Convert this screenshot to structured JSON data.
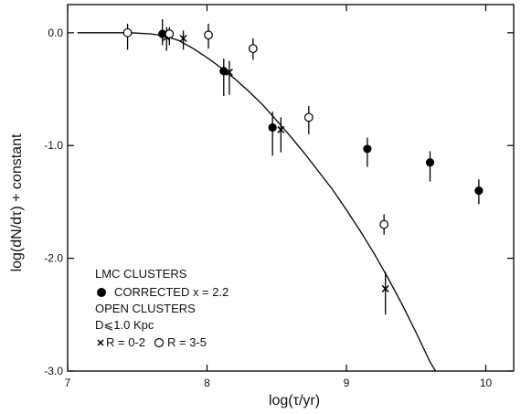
{
  "chart_data": {
    "type": "scatter",
    "xlabel": "log(τ/yr)",
    "ylabel": "log(dN/dτ) + constant",
    "xlim": [
      7,
      10.2
    ],
    "ylim": [
      -3.0,
      0.25
    ],
    "x_ticks": [
      7,
      8,
      9,
      10
    ],
    "x_tick_labels": [
      "7",
      "8",
      "9",
      "10"
    ],
    "y_ticks": [
      0,
      -1,
      -2,
      -3
    ],
    "y_tick_labels": [
      "0.0",
      "-1.0",
      "-2.0",
      "-3.0"
    ],
    "grid": false,
    "legend_position": "bottom-left",
    "legend": {
      "title1": "LMC CLUSTERS",
      "corrected_label": "CORRECTED x = 2.2",
      "title2": "OPEN CLUSTERS",
      "distance_label": "D⩽1.0 Kpc",
      "cross_label": "R = 0-2",
      "open_label": "R = 3-5"
    },
    "series": [
      {
        "marker": "filled-circle",
        "points": [
          {
            "x": 7.68,
            "y": -0.01,
            "yerr": [
              0.1,
              0.13
            ]
          },
          {
            "x": 8.12,
            "y": -0.34,
            "yerr": [
              0.22,
              0.11
            ]
          },
          {
            "x": 8.47,
            "y": -0.84,
            "yerr": [
              0.25,
              0.14
            ]
          },
          {
            "x": 9.15,
            "y": -1.03,
            "yerr": [
              0.16,
              0.1
            ]
          },
          {
            "x": 9.6,
            "y": -1.15,
            "yerr": [
              0.17,
              0.1
            ]
          },
          {
            "x": 9.95,
            "y": -1.4,
            "yerr": [
              0.12,
              0.1
            ]
          }
        ]
      },
      {
        "marker": "cross",
        "points": [
          {
            "x": 7.71,
            "y": -0.04,
            "yerr": [
              0.12,
              0.09
            ]
          },
          {
            "x": 7.83,
            "y": -0.05,
            "yerr": [
              0.1,
              0.07
            ]
          },
          {
            "x": 8.16,
            "y": -0.35,
            "yerr": [
              0.2,
              0.1
            ]
          },
          {
            "x": 8.53,
            "y": -0.86,
            "yerr": [
              0.2,
              0.11
            ]
          },
          {
            "x": 9.28,
            "y": -2.27,
            "yerr": [
              0.23,
              0.15
            ]
          }
        ]
      },
      {
        "marker": "open-circle",
        "points": [
          {
            "x": 7.43,
            "y": 0.0,
            "yerr": [
              0.15,
              0.08
            ]
          },
          {
            "x": 7.73,
            "y": -0.01,
            "yerr": [
              0.1,
              0.06
            ]
          },
          {
            "x": 8.01,
            "y": -0.02,
            "yerr": [
              0.12,
              0.1
            ]
          },
          {
            "x": 8.33,
            "y": -0.14,
            "yerr": [
              0.1,
              0.09
            ]
          },
          {
            "x": 8.73,
            "y": -0.75,
            "yerr": [
              0.15,
              0.1
            ]
          },
          {
            "x": 9.27,
            "y": -1.7,
            "yerr": [
              0.09,
              0.09
            ]
          }
        ]
      }
    ],
    "curve": [
      {
        "x": 7.07,
        "y": 0.0
      },
      {
        "x": 7.3,
        "y": 0.0
      },
      {
        "x": 7.45,
        "y": 0.0
      },
      {
        "x": 7.6,
        "y": -0.01
      },
      {
        "x": 7.7,
        "y": -0.03
      },
      {
        "x": 7.8,
        "y": -0.07
      },
      {
        "x": 7.9,
        "y": -0.14
      },
      {
        "x": 8.0,
        "y": -0.22
      },
      {
        "x": 8.1,
        "y": -0.31
      },
      {
        "x": 8.2,
        "y": -0.41
      },
      {
        "x": 8.3,
        "y": -0.52
      },
      {
        "x": 8.4,
        "y": -0.64
      },
      {
        "x": 8.5,
        "y": -0.78
      },
      {
        "x": 8.6,
        "y": -0.92
      },
      {
        "x": 8.7,
        "y": -1.07
      },
      {
        "x": 8.8,
        "y": -1.23
      },
      {
        "x": 8.9,
        "y": -1.39
      },
      {
        "x": 9.0,
        "y": -1.57
      },
      {
        "x": 9.1,
        "y": -1.76
      },
      {
        "x": 9.2,
        "y": -1.96
      },
      {
        "x": 9.3,
        "y": -2.18
      },
      {
        "x": 9.4,
        "y": -2.41
      },
      {
        "x": 9.5,
        "y": -2.66
      },
      {
        "x": 9.6,
        "y": -2.92
      },
      {
        "x": 9.64,
        "y": -3.0
      }
    ]
  }
}
